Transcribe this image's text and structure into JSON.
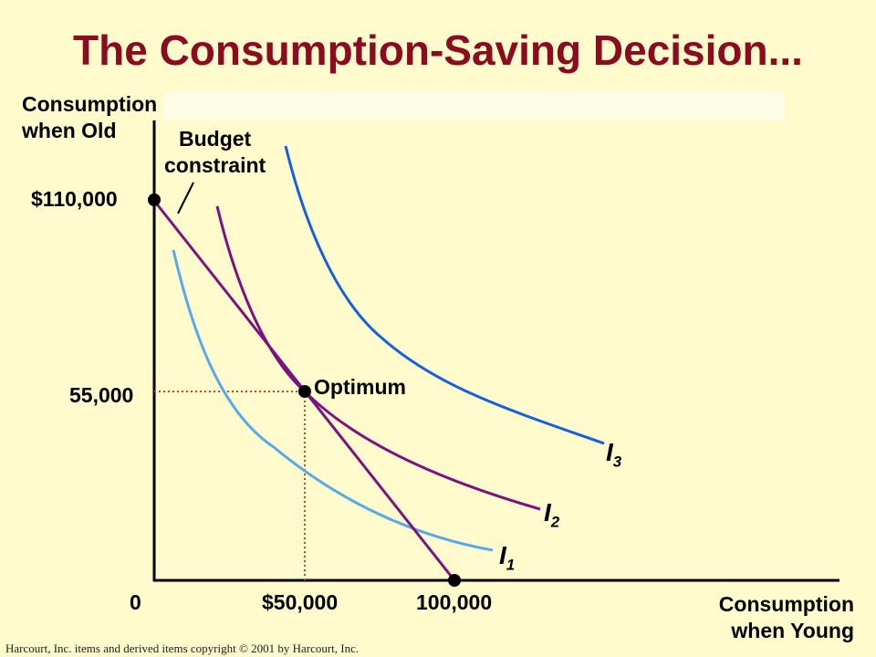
{
  "title": "The Consumption-Saving Decision...",
  "axes": {
    "y_label_line1": "Consumption",
    "y_label_line2": "when Old",
    "x_label_line1": "Consumption",
    "x_label_line2": "when Young",
    "origin": "0",
    "y_ticks": [
      "$110,000",
      "55,000"
    ],
    "x_ticks": [
      "$50,000",
      "100,000"
    ]
  },
  "annotations": {
    "budget_line1": "Budget",
    "budget_line2": "constraint",
    "optimum": "Optimum"
  },
  "curves": [
    {
      "label": "I",
      "sub": "1",
      "color": "#55aaee"
    },
    {
      "label": "I",
      "sub": "2",
      "color": "#7b1280"
    },
    {
      "label": "I",
      "sub": "3",
      "color": "#1560dd"
    }
  ],
  "colors": {
    "title": "#8b0c20",
    "budget_line": "#7b1280",
    "guide_lines": "#cc4422",
    "axis": "#000000",
    "background": "#fffbcc"
  },
  "copyright": "Harcourt, Inc. items and derived items copyright © 2001 by Harcourt, Inc."
}
